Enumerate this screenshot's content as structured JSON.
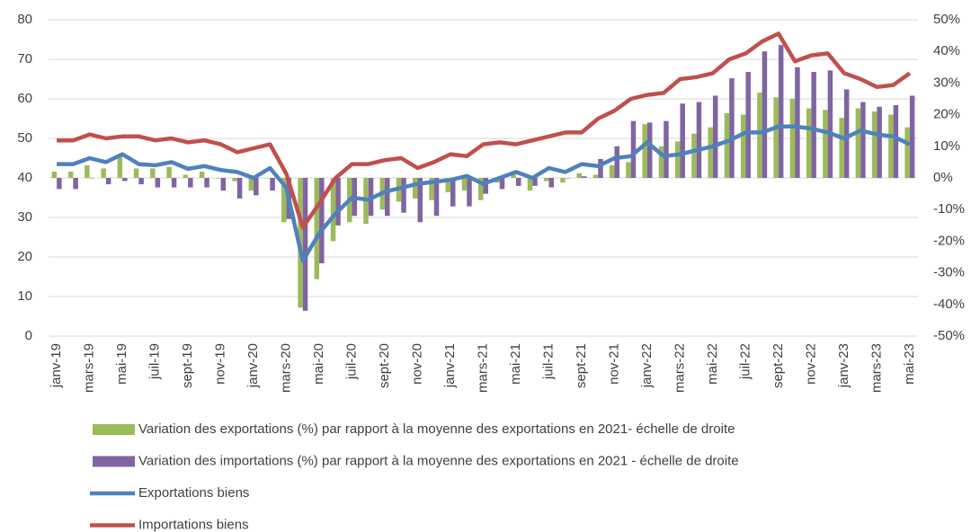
{
  "chart_data": {
    "type": "combo",
    "categories": [
      "janv-19",
      null,
      "mars-19",
      null,
      "mai-19",
      null,
      "juil-19",
      null,
      "sept-19",
      null,
      "nov-19",
      null,
      "janv-20",
      null,
      "mars-20",
      null,
      "mai-20",
      null,
      "juil-20",
      null,
      "sept-20",
      null,
      "nov-20",
      null,
      "janv-21",
      null,
      "mars-21",
      null,
      "mai-21",
      null,
      "juil-21",
      null,
      "sept-21",
      null,
      "nov-21",
      null,
      "janv-22",
      null,
      "mars-22",
      null,
      "mai-22",
      null,
      "juil-22",
      null,
      "sept-22",
      null,
      "nov-22",
      null,
      "janv-23",
      null,
      "mars-23",
      null,
      "mai-23"
    ],
    "series": [
      {
        "name": "Variation des exportations (%) par rapport à la moyenne des exportations en 2021- échelle de droite",
        "type": "bar",
        "axis": "y2",
        "color": "#9bbb59",
        "values": [
          2,
          2,
          4,
          3,
          7,
          3,
          3,
          3.5,
          1,
          2,
          0,
          -1,
          -4,
          0,
          -14,
          -41,
          -32,
          -20,
          -14,
          -14.5,
          -10,
          -7.5,
          -6.5,
          -7,
          -4.5,
          -4,
          -7,
          -1.5,
          1,
          -4,
          -1,
          -1.5,
          1.5,
          1,
          4,
          5,
          17,
          10,
          11.5,
          14,
          16,
          20.5,
          20,
          27,
          25.5,
          25,
          22,
          21.5,
          19,
          22,
          21,
          20,
          16
        ]
      },
      {
        "name": "Variation des importations (%) par rapport à la moyenne des exportations en 2021 - échelle de droite",
        "type": "bar",
        "axis": "y2",
        "color": "#8064a2",
        "values": [
          -3.5,
          -3.5,
          0,
          -2,
          -1,
          -2,
          -3,
          -3,
          -3,
          -3,
          -4,
          -6.5,
          -5.5,
          -4,
          -13,
          -42,
          -27,
          -15,
          -12,
          -12,
          -12,
          -11,
          -14,
          -12,
          -9,
          -9,
          -5,
          -3.5,
          -2.5,
          -2.5,
          -3,
          0,
          0.5,
          6,
          10,
          18,
          17.5,
          18,
          23.5,
          24,
          26,
          31.5,
          33.5,
          40,
          42,
          35,
          33.5,
          34,
          28,
          24,
          22.5,
          23,
          26
        ]
      },
      {
        "name": "Exportations biens",
        "type": "line",
        "color": "#4f81bd",
        "values": [
          43.5,
          43.5,
          45,
          44,
          46,
          43.5,
          43.2,
          44,
          42.3,
          43,
          42,
          41.5,
          40,
          42.5,
          37.5,
          19,
          26,
          31,
          35,
          34.5,
          36.5,
          37.5,
          38.5,
          39,
          39.5,
          40.5,
          38.5,
          40,
          41.5,
          40,
          42.5,
          41.5,
          43.5,
          43,
          45,
          45.5,
          49,
          45.5,
          46,
          47,
          48,
          49.5,
          51.5,
          51.5,
          53,
          53,
          52.5,
          51.5,
          50,
          52,
          51,
          50.5,
          48.5
        ]
      },
      {
        "name": "Importations biens",
        "type": "line",
        "color": "#c0504d",
        "values": [
          49.5,
          49.5,
          51,
          50,
          50.5,
          50.5,
          49.5,
          50,
          49,
          49.5,
          48.5,
          46.5,
          47.5,
          48.5,
          41,
          27.5,
          33.5,
          40,
          43.5,
          43.5,
          44.5,
          45,
          42.5,
          44,
          46,
          45.5,
          48.5,
          49,
          48.5,
          49.5,
          50.5,
          51.5,
          51.5,
          55,
          57,
          60,
          61,
          61.5,
          65,
          65.5,
          66.5,
          70,
          71.5,
          74.5,
          76.5,
          69.5,
          71,
          71.5,
          66.5,
          65,
          63,
          63.5,
          66.5
        ]
      }
    ],
    "ylim": [
      0,
      80
    ],
    "yticks": [
      0,
      10,
      20,
      30,
      40,
      50,
      60,
      70,
      80
    ],
    "y2lim": [
      -50,
      50
    ],
    "y2ticks": [
      {
        "value": -50,
        "label": "-50%"
      },
      {
        "value": -40,
        "label": "-40%"
      },
      {
        "value": -30,
        "label": "-30%"
      },
      {
        "value": -20,
        "label": "-20%"
      },
      {
        "value": -10,
        "label": "-10%"
      },
      {
        "value": 0,
        "label": "0%"
      },
      {
        "value": 10,
        "label": "10%"
      },
      {
        "value": 20,
        "label": "20%"
      },
      {
        "value": 30,
        "label": "30%"
      },
      {
        "value": 40,
        "label": "40%"
      },
      {
        "value": 50,
        "label": "50%"
      }
    ],
    "grid": true,
    "legend": "bottom"
  }
}
